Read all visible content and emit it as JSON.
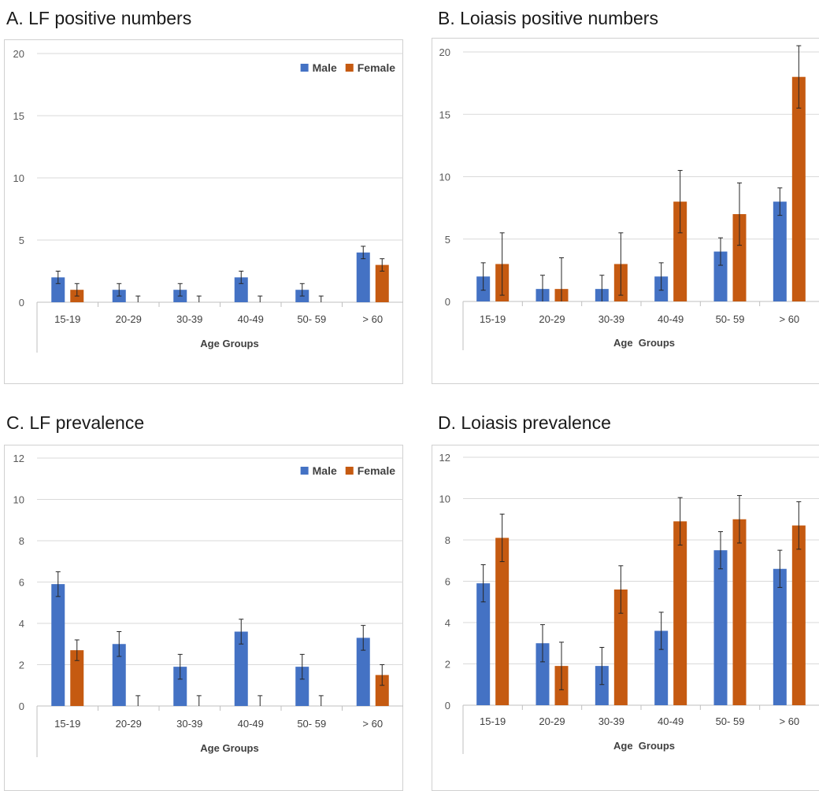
{
  "colors": {
    "male": "#4472C4",
    "female": "#C55A11",
    "grid": "#D9D9D9",
    "axis": "#BFBFBF",
    "text": "#595959"
  },
  "legend": {
    "male": "Male",
    "female": "Female"
  },
  "chart_data": [
    {
      "panel_title": "A. LF positive numbers",
      "type": "bar",
      "xlabel": "Age Groups",
      "ylabel": "",
      "ylim": [
        0,
        20
      ],
      "yticks": [
        0,
        5,
        10,
        15,
        20
      ],
      "grid": true,
      "legend": "top-right",
      "categories": [
        "15-19",
        "20-29",
        "30-39",
        "40-49",
        "50- 59",
        "> 60"
      ],
      "series": [
        {
          "name": "Male",
          "values": [
            2,
            1,
            1,
            2,
            1,
            4
          ],
          "errors": [
            0.5,
            0.5,
            0.5,
            0.5,
            0.5,
            0.5
          ]
        },
        {
          "name": "Female",
          "values": [
            1,
            0,
            0,
            0,
            0,
            3
          ],
          "errors": [
            0.5,
            0.5,
            0.5,
            0.5,
            0.5,
            0.5
          ]
        }
      ]
    },
    {
      "panel_title": "B. Loiasis positive numbers",
      "type": "bar",
      "xlabel": "Age  Groups",
      "ylabel": "",
      "ylim": [
        0,
        20
      ],
      "yticks": [
        0,
        5,
        10,
        15,
        20
      ],
      "grid": true,
      "legend": "none",
      "categories": [
        "15-19",
        "20-29",
        "30-39",
        "40-49",
        "50- 59",
        "> 60"
      ],
      "series": [
        {
          "name": "Male",
          "values": [
            2,
            1,
            1,
            2,
            4,
            8
          ],
          "errors": [
            1.1,
            1.1,
            1.1,
            1.1,
            1.1,
            1.1
          ]
        },
        {
          "name": "Female",
          "values": [
            3,
            1,
            3,
            8,
            7,
            18
          ],
          "errors": [
            2.5,
            2.5,
            2.5,
            2.5,
            2.5,
            2.5
          ]
        }
      ]
    },
    {
      "panel_title": "C. LF prevalence",
      "type": "bar",
      "xlabel": "Age Groups",
      "ylabel": "",
      "ylim": [
        0,
        12
      ],
      "yticks": [
        0,
        2,
        4,
        6,
        8,
        10,
        12
      ],
      "grid": true,
      "legend": "top-right",
      "categories": [
        "15-19",
        "20-29",
        "30-39",
        "40-49",
        "50- 59",
        "> 60"
      ],
      "series": [
        {
          "name": "Male",
          "values": [
            5.9,
            3.0,
            1.9,
            3.6,
            1.9,
            3.3
          ],
          "errors": [
            0.6,
            0.6,
            0.6,
            0.6,
            0.6,
            0.6
          ]
        },
        {
          "name": "Female",
          "values": [
            2.7,
            0,
            0,
            0,
            0,
            1.5
          ],
          "errors": [
            0.5,
            0.5,
            0.5,
            0.5,
            0.5,
            0.5
          ]
        }
      ]
    },
    {
      "panel_title": "D. Loiasis prevalence",
      "type": "bar",
      "xlabel": "Age  Groups",
      "ylabel": "",
      "ylim": [
        0,
        12
      ],
      "yticks": [
        0,
        2,
        4,
        6,
        8,
        10,
        12
      ],
      "grid": true,
      "legend": "none",
      "categories": [
        "15-19",
        "20-29",
        "30-39",
        "40-49",
        "50- 59",
        "> 60"
      ],
      "series": [
        {
          "name": "Male",
          "values": [
            5.9,
            3.0,
            1.9,
            3.6,
            7.5,
            6.6
          ],
          "errors": [
            0.9,
            0.9,
            0.9,
            0.9,
            0.9,
            0.9
          ]
        },
        {
          "name": "Female",
          "values": [
            8.1,
            1.9,
            5.6,
            8.9,
            9.0,
            8.7
          ],
          "errors": [
            1.15,
            1.15,
            1.15,
            1.15,
            1.15,
            1.15
          ]
        }
      ]
    }
  ]
}
